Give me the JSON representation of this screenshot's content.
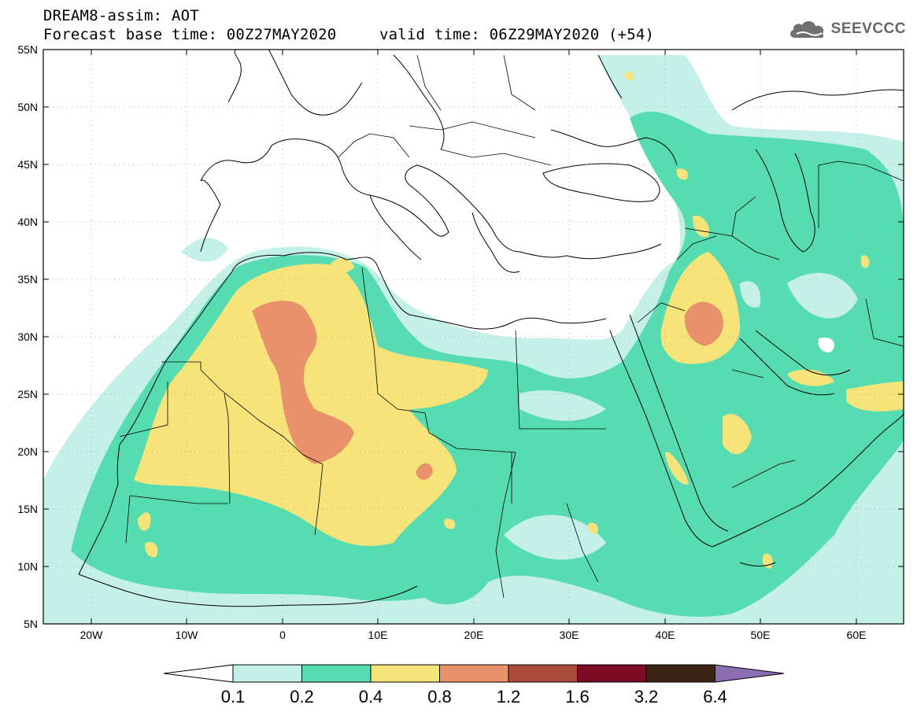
{
  "header": {
    "title": "DREAM8-assim: AOT",
    "base_time": "Forecast base time: 00Z27MAY2020",
    "valid_time": "valid time: 06Z29MAY2020 (+54)"
  },
  "logo": {
    "text": "SEEVCCC",
    "icon": "cloud-logo-icon"
  },
  "map": {
    "lon_range": [
      -25,
      65
    ],
    "lat_range": [
      5,
      55
    ],
    "lat_ticks": [
      "55N",
      "50N",
      "45N",
      "40N",
      "35N",
      "30N",
      "25N",
      "20N",
      "15N",
      "10N",
      "5N"
    ],
    "lon_ticks": [
      "20W",
      "10W",
      "0",
      "10E",
      "20E",
      "30E",
      "40E",
      "50E",
      "60E"
    ]
  },
  "colorbar": {
    "labels": [
      "0.1",
      "0.2",
      "0.4",
      "0.8",
      "1.2",
      "1.6",
      "3.2",
      "6.4"
    ],
    "colors": [
      "#ffffff",
      "#c4f0e8",
      "#56dcb0",
      "#f6e47a",
      "#e8916a",
      "#a94c3a",
      "#7e0a24",
      "#3b2414",
      "#8d6db4"
    ]
  }
}
